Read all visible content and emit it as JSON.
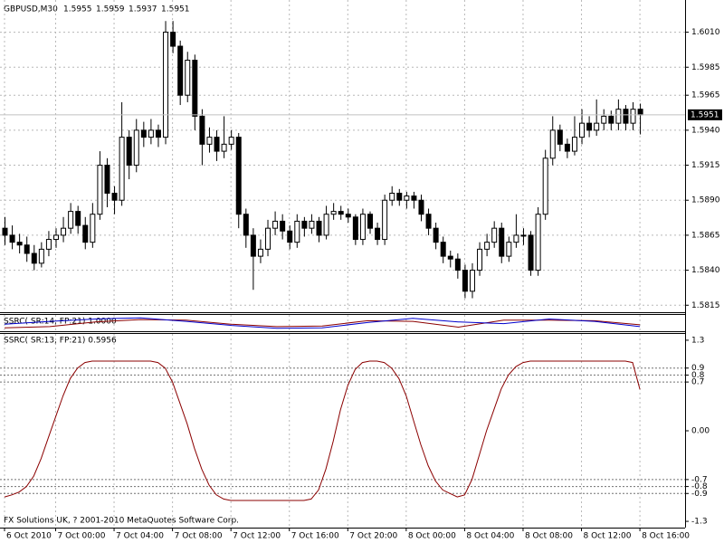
{
  "chart_data": [
    {
      "type": "candlestick",
      "title": "GBPUSD,M30",
      "candles": [
        [
          1.587,
          1.5878,
          1.5858,
          1.5865
        ],
        [
          1.5865,
          1.5872,
          1.5855,
          1.586
        ],
        [
          1.586,
          1.5866,
          1.5852,
          1.5858
        ],
        [
          1.5858,
          1.5864,
          1.5846,
          1.5852
        ],
        [
          1.5852,
          1.5858,
          1.584,
          1.5845
        ],
        [
          1.5845,
          1.586,
          1.5842,
          1.5855
        ],
        [
          1.5855,
          1.5868,
          1.585,
          1.5862
        ],
        [
          1.5862,
          1.587,
          1.5856,
          1.5865
        ],
        [
          1.5865,
          1.5878,
          1.586,
          1.587
        ],
        [
          1.587,
          1.5888,
          1.5866,
          1.5882
        ],
        [
          1.5882,
          1.5886,
          1.5866,
          1.5872
        ],
        [
          1.5872,
          1.5878,
          1.5855,
          1.586
        ],
        [
          1.586,
          1.5888,
          1.5856,
          1.588
        ],
        [
          1.588,
          1.5925,
          1.5876,
          1.5915
        ],
        [
          1.5915,
          1.592,
          1.5885,
          1.5895
        ],
        [
          1.5895,
          1.59,
          1.588,
          1.589
        ],
        [
          1.589,
          1.596,
          1.5886,
          1.5935
        ],
        [
          1.5935,
          1.594,
          1.5905,
          1.5915
        ],
        [
          1.5915,
          1.5948,
          1.591,
          1.594
        ],
        [
          1.594,
          1.5946,
          1.5928,
          1.5935
        ],
        [
          1.5935,
          1.5948,
          1.593,
          1.594
        ],
        [
          1.594,
          1.5944,
          1.5928,
          1.5935
        ],
        [
          1.5935,
          1.6018,
          1.593,
          1.601
        ],
        [
          1.601,
          1.6018,
          1.5995,
          1.6
        ],
        [
          1.6,
          1.6004,
          1.5958,
          1.5965
        ],
        [
          1.5965,
          1.5996,
          1.596,
          1.599
        ],
        [
          1.599,
          1.5994,
          1.594,
          1.595
        ],
        [
          1.595,
          1.5955,
          1.5915,
          1.593
        ],
        [
          1.593,
          1.5942,
          1.5924,
          1.5935
        ],
        [
          1.5935,
          1.594,
          1.5918,
          1.5925
        ],
        [
          1.5925,
          1.595,
          1.592,
          1.593
        ],
        [
          1.593,
          1.594,
          1.5926,
          1.5935
        ],
        [
          1.5935,
          1.5938,
          1.587,
          1.588
        ],
        [
          1.588,
          1.5884,
          1.5856,
          1.5865
        ],
        [
          1.5865,
          1.587,
          1.5826,
          1.585
        ],
        [
          1.585,
          1.5862,
          1.5845,
          1.5855
        ],
        [
          1.5855,
          1.5876,
          1.585,
          1.587
        ],
        [
          1.587,
          1.5882,
          1.5865,
          1.5875
        ],
        [
          1.5875,
          1.588,
          1.5862,
          1.5868
        ],
        [
          1.5868,
          1.5872,
          1.5855,
          1.586
        ],
        [
          1.586,
          1.588,
          1.5856,
          1.5875
        ],
        [
          1.5875,
          1.5878,
          1.5864,
          1.587
        ],
        [
          1.587,
          1.588,
          1.5866,
          1.5875
        ],
        [
          1.5875,
          1.5878,
          1.586,
          1.5865
        ],
        [
          1.5865,
          1.5886,
          1.5862,
          1.588
        ],
        [
          1.588,
          1.5888,
          1.5876,
          1.5882
        ],
        [
          1.5882,
          1.5886,
          1.5876,
          1.588
        ],
        [
          1.588,
          1.5884,
          1.5874,
          1.5878
        ],
        [
          1.5878,
          1.588,
          1.5858,
          1.5862
        ],
        [
          1.5862,
          1.5884,
          1.5858,
          1.588
        ],
        [
          1.588,
          1.5882,
          1.5866,
          1.587
        ],
        [
          1.587,
          1.5874,
          1.5858,
          1.5862
        ],
        [
          1.5862,
          1.5894,
          1.5858,
          1.589
        ],
        [
          1.589,
          1.59,
          1.5886,
          1.5895
        ],
        [
          1.5895,
          1.5898,
          1.5886,
          1.589
        ],
        [
          1.589,
          1.5896,
          1.5884,
          1.5893
        ],
        [
          1.5893,
          1.5896,
          1.5884,
          1.589
        ],
        [
          1.589,
          1.5894,
          1.5875,
          1.588
        ],
        [
          1.588,
          1.5884,
          1.5865,
          1.587
        ],
        [
          1.587,
          1.5874,
          1.5855,
          1.586
        ],
        [
          1.586,
          1.5864,
          1.5845,
          1.585
        ],
        [
          1.585,
          1.5854,
          1.5842,
          1.5848
        ],
        [
          1.5848,
          1.5852,
          1.5834,
          1.584
        ],
        [
          1.584,
          1.5844,
          1.582,
          1.5825
        ],
        [
          1.5825,
          1.5845,
          1.582,
          1.584
        ],
        [
          1.584,
          1.586,
          1.5836,
          1.5855
        ],
        [
          1.5855,
          1.5866,
          1.585,
          1.586
        ],
        [
          1.586,
          1.5875,
          1.5856,
          1.587
        ],
        [
          1.587,
          1.5874,
          1.5845,
          1.585
        ],
        [
          1.585,
          1.5864,
          1.5846,
          1.586
        ],
        [
          1.586,
          1.588,
          1.5856,
          1.5865
        ],
        [
          1.5865,
          1.587,
          1.5858,
          1.5865
        ],
        [
          1.5865,
          1.5868,
          1.5836,
          1.584
        ],
        [
          1.584,
          1.5885,
          1.5836,
          1.588
        ],
        [
          1.588,
          1.5926,
          1.5876,
          1.592
        ],
        [
          1.592,
          1.595,
          1.5915,
          1.594
        ],
        [
          1.594,
          1.5944,
          1.5925,
          1.593
        ],
        [
          1.593,
          1.5934,
          1.592,
          1.5925
        ],
        [
          1.5925,
          1.595,
          1.5922,
          1.5935
        ],
        [
          1.5935,
          1.5955,
          1.593,
          1.5945
        ],
        [
          1.5945,
          1.595,
          1.5935,
          1.594
        ],
        [
          1.594,
          1.5962,
          1.5936,
          1.5945
        ],
        [
          1.5945,
          1.5955,
          1.594,
          1.595
        ],
        [
          1.595,
          1.5954,
          1.594,
          1.5945
        ],
        [
          1.5945,
          1.5962,
          1.594,
          1.5955
        ],
        [
          1.5955,
          1.5958,
          1.594,
          1.5945
        ],
        [
          1.5945,
          1.596,
          1.594,
          1.5955
        ],
        [
          1.5955,
          1.5959,
          1.5937,
          1.5951
        ]
      ],
      "ylim": [
        1.581,
        1.6033
      ],
      "yticks": [
        {
          "value": 1.601,
          "label": "1.6010"
        },
        1.5985,
        1.5965,
        {
          "value": 1.594,
          "label": "1.5940"
        },
        1.5915,
        {
          "value": 1.589,
          "label": "1.5890"
        },
        1.5865,
        {
          "value": 1.584,
          "label": "1.5840"
        },
        1.5815
      ],
      "xticks": [
        {
          "value": 0,
          "label": "6 Oct 2010"
        },
        {
          "value": 7,
          "label": "7 Oct 00:00"
        },
        {
          "value": 15,
          "label": "7 Oct 04:00"
        },
        {
          "value": 23,
          "label": "7 Oct 08:00"
        },
        {
          "value": 31,
          "label": "7 Oct 12:00"
        },
        {
          "value": 39,
          "label": "7 Oct 16:00"
        },
        {
          "value": 47,
          "label": "7 Oct 20:00"
        },
        {
          "value": 55,
          "label": "8 Oct 00:00"
        },
        {
          "value": 63,
          "label": "8 Oct 04:00"
        },
        {
          "value": 71,
          "label": "8 Oct 08:00"
        },
        {
          "value": 79,
          "label": "8 Oct 12:00"
        },
        {
          "value": 87,
          "label": "8 Oct 16:00"
        }
      ],
      "grid": true
    },
    {
      "type": "line",
      "title": "SSRC( SR:14, FP:21) 1.0000",
      "series": [
        {
          "color": "#8b0000",
          "values": [
            -0.8,
            -0.6,
            0.2,
            0.6,
            0.5,
            -0.2,
            -0.6,
            -0.5,
            0.4,
            0.3,
            -0.7,
            0.5,
            0.5,
            0.4,
            -0.3
          ]
        },
        {
          "color": "#0000cd",
          "values": [
            -0.2,
            0.3,
            0.7,
            0.9,
            0.3,
            -0.4,
            -0.9,
            -0.8,
            0.1,
            0.8,
            0.2,
            -0.1,
            0.7,
            0.3,
            -0.6
          ]
        }
      ],
      "ylim": [
        -1.39,
        1.39
      ]
    },
    {
      "type": "line",
      "title": "SSRC( SR:13, FP:21) 0.5956",
      "annotation": "FX Solutions UK, ? 2001-2010 MetaQuotes Software Corp.",
      "series": [
        {
          "color": "#8b0000",
          "values": [
            -0.95,
            -0.92,
            -0.88,
            -0.8,
            -0.65,
            -0.4,
            -0.1,
            0.2,
            0.5,
            0.75,
            0.9,
            0.98,
            1.0,
            1.0,
            1.0,
            1.0,
            1.0,
            1.0,
            1.0,
            1.0,
            1.0,
            0.98,
            0.9,
            0.7,
            0.4,
            0.1,
            -0.25,
            -0.55,
            -0.78,
            -0.92,
            -0.98,
            -1.0,
            -1.0,
            -1.0,
            -1.0,
            -1.0,
            -1.0,
            -1.0,
            -1.0,
            -1.0,
            -1.0,
            -1.0,
            -0.98,
            -0.85,
            -0.55,
            -0.15,
            0.3,
            0.65,
            0.88,
            0.98,
            1.0,
            1.0,
            0.98,
            0.9,
            0.75,
            0.5,
            0.15,
            -0.2,
            -0.5,
            -0.72,
            -0.85,
            -0.9,
            -0.95,
            -0.92,
            -0.7,
            -0.35,
            0.0,
            0.3,
            0.6,
            0.8,
            0.92,
            0.98,
            1.0,
            1.0,
            1.0,
            1.0,
            1.0,
            1.0,
            1.0,
            1.0,
            1.0,
            1.0,
            1.0,
            1.0,
            1.0,
            1.0,
            0.98,
            0.5956
          ]
        }
      ],
      "ylim": [
        -1.39,
        1.39
      ],
      "yticks": [
        1.3,
        0.9,
        0.8,
        0.7,
        {
          "value": 0,
          "label": "0.00"
        },
        -0.7,
        -0.8,
        -0.9,
        -1.3
      ],
      "levels": [
        0.9,
        0.8,
        0.7,
        -0.7,
        -0.8,
        -0.9
      ]
    }
  ]
}
